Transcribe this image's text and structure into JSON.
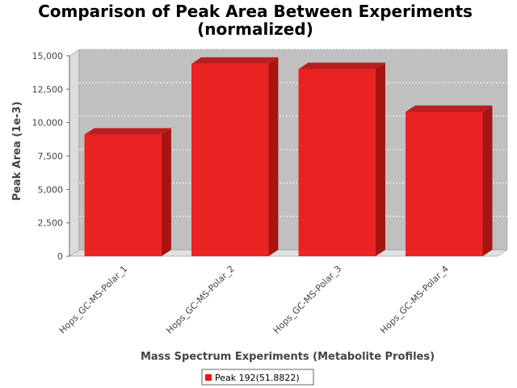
{
  "chart_data": {
    "type": "bar",
    "title_lines": [
      "Comparison of Peak Area Between Experiments",
      "(normalized)"
    ],
    "xlabel": "Mass Spectrum Experiments (Metabolite Profiles)",
    "ylabel": "Peak Area (1e-3)",
    "categories": [
      "Hops_GC-MS-Polar_1",
      "Hops_GC-MS-Polar_2",
      "Hops_GC-MS-Polar_3",
      "Hops_GC-MS-Polar_4"
    ],
    "series": [
      {
        "name": "Peak 192(51.8822)",
        "color": "#ee1111",
        "values": [
          9100,
          14400,
          14000,
          10800
        ]
      }
    ],
    "ylim": [
      0,
      15000
    ],
    "yticks": [
      0,
      2500,
      5000,
      7500,
      10000,
      12500,
      15000
    ],
    "ytick_labels": [
      "0",
      "2,500",
      "5,000",
      "7,500",
      "10,000",
      "12,500",
      "15,000"
    ],
    "grid": true,
    "legend": "bottom-center",
    "plot_background": "#c0c0c0"
  }
}
